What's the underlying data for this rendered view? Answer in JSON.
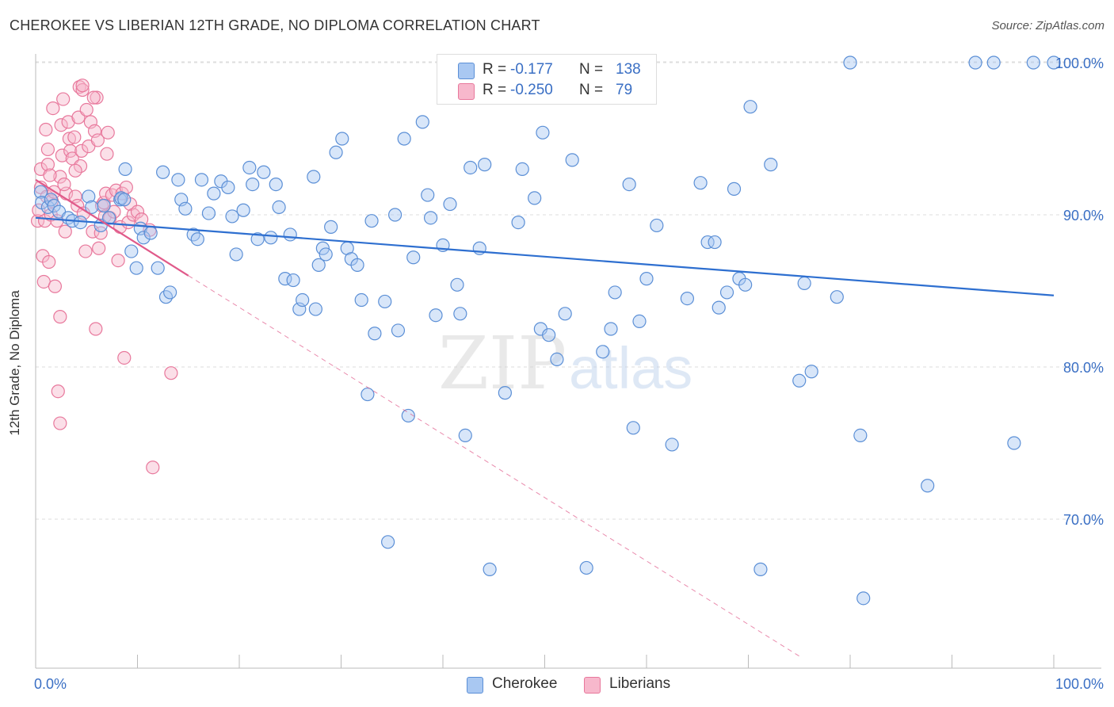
{
  "header": {
    "title": "CHEROKEE VS LIBERIAN 12TH GRADE, NO DIPLOMA CORRELATION CHART",
    "source": "Source: ZipAtlas.com"
  },
  "watermark": {
    "zip": "ZIP",
    "atlas": "atlas"
  },
  "legend_top": {
    "rows": [
      {
        "r_label": "R =",
        "r_value": "-0.177",
        "n_label": "N =",
        "n_value": "138",
        "color": "#a9c8f2"
      },
      {
        "r_label": "R =",
        "r_value": "-0.250",
        "n_label": "N =",
        "n_value": "79",
        "color": "#f7b8cc"
      }
    ]
  },
  "legend_bottom": [
    {
      "label": "Cherokee",
      "color": "#a9c8f2"
    },
    {
      "label": "Liberians",
      "color": "#f7b8cc"
    }
  ],
  "colors": {
    "cherokee_fill": "#a9c8f2",
    "cherokee_stroke": "#5b8fd6",
    "cherokee_line": "#2e6fd0",
    "liberian_fill": "#f7b8cc",
    "liberian_stroke": "#e8789c",
    "liberian_line": "#e05a8a",
    "tick_label": "#3a6fc4",
    "grid": "#dddddd"
  },
  "chart_data": {
    "type": "scatter",
    "title": "CHEROKEE VS LIBERIAN 12TH GRADE, NO DIPLOMA CORRELATION CHART",
    "xlabel": "",
    "ylabel": "12th Grade, No Diploma",
    "xlim": [
      0,
      100
    ],
    "ylim": [
      60,
      102
    ],
    "x_tick_labels": [
      "0.0%",
      "100.0%"
    ],
    "y_ticks": [
      70,
      80,
      90,
      100
    ],
    "y_tick_labels": [
      "70.0%",
      "80.0%",
      "90.0%",
      "100.0%"
    ],
    "grid": true,
    "legend_position": "top-center",
    "series": [
      {
        "name": "Cherokee",
        "R": -0.177,
        "N": 138,
        "trend": {
          "x": [
            0,
            100
          ],
          "y": [
            89.8,
            84.7
          ]
        },
        "points": [
          [
            0.5,
            91.5
          ],
          [
            0.6,
            90.8
          ],
          [
            1.2,
            90.5
          ],
          [
            1.5,
            91
          ],
          [
            1.8,
            90.6
          ],
          [
            2.3,
            90.2
          ],
          [
            3.2,
            89.8
          ],
          [
            3.6,
            89.6
          ],
          [
            4.4,
            89.5
          ],
          [
            5.2,
            91.2
          ],
          [
            5.5,
            90.5
          ],
          [
            6.7,
            90.6
          ],
          [
            6.4,
            89.3
          ],
          [
            7.2,
            89.8
          ],
          [
            8.3,
            91
          ],
          [
            8.4,
            91.1
          ],
          [
            8.7,
            91
          ],
          [
            8.8,
            93
          ],
          [
            9.4,
            87.6
          ],
          [
            9.9,
            86.5
          ],
          [
            10.3,
            89.1
          ],
          [
            10.6,
            88.5
          ],
          [
            11.3,
            88.8
          ],
          [
            12.0,
            86.5
          ],
          [
            12.5,
            92.8
          ],
          [
            12.8,
            84.6
          ],
          [
            13.2,
            84.9
          ],
          [
            14.0,
            92.3
          ],
          [
            14.3,
            91.0
          ],
          [
            14.7,
            90.4
          ],
          [
            15.5,
            88.7
          ],
          [
            15.9,
            88.4
          ],
          [
            16.3,
            92.3
          ],
          [
            17.0,
            90.1
          ],
          [
            17.5,
            91.4
          ],
          [
            18.2,
            92.2
          ],
          [
            18.9,
            91.8
          ],
          [
            19.3,
            89.9
          ],
          [
            19.7,
            87.4
          ],
          [
            20.4,
            90.3
          ],
          [
            21.0,
            93.1
          ],
          [
            21.3,
            92.0
          ],
          [
            21.8,
            88.4
          ],
          [
            22.4,
            92.8
          ],
          [
            23.1,
            88.5
          ],
          [
            23.6,
            92.0
          ],
          [
            23.9,
            90.5
          ],
          [
            24.5,
            85.8
          ],
          [
            25.0,
            88.7
          ],
          [
            25.3,
            85.7
          ],
          [
            25.9,
            83.8
          ],
          [
            26.2,
            84.4
          ],
          [
            27.3,
            92.5
          ],
          [
            27.5,
            83.8
          ],
          [
            27.8,
            86.7
          ],
          [
            28.2,
            87.8
          ],
          [
            28.5,
            87.4
          ],
          [
            29.0,
            89.2
          ],
          [
            29.5,
            94.1
          ],
          [
            30.1,
            95.0
          ],
          [
            30.6,
            87.8
          ],
          [
            31.0,
            87.1
          ],
          [
            31.6,
            86.7
          ],
          [
            32.0,
            84.4
          ],
          [
            32.6,
            78.2
          ],
          [
            33.0,
            89.6
          ],
          [
            33.3,
            82.2
          ],
          [
            34.3,
            84.3
          ],
          [
            34.6,
            68.5
          ],
          [
            35.3,
            90.0
          ],
          [
            35.6,
            82.4
          ],
          [
            36.2,
            95.0
          ],
          [
            36.6,
            76.8
          ],
          [
            37.1,
            87.2
          ],
          [
            38.0,
            96.1
          ],
          [
            38.5,
            91.3
          ],
          [
            38.8,
            89.8
          ],
          [
            39.3,
            83.4
          ],
          [
            40.0,
            88.0
          ],
          [
            40.7,
            90.7
          ],
          [
            41.4,
            85.4
          ],
          [
            41.7,
            83.5
          ],
          [
            42.2,
            75.5
          ],
          [
            42.7,
            93.1
          ],
          [
            43.6,
            87.8
          ],
          [
            44.1,
            93.3
          ],
          [
            44.6,
            66.7
          ],
          [
            46.1,
            78.3
          ],
          [
            47.4,
            89.5
          ],
          [
            47.8,
            93.0
          ],
          [
            48.0,
            100
          ],
          [
            49.0,
            91.1
          ],
          [
            49.6,
            82.5
          ],
          [
            49.8,
            95.4
          ],
          [
            50.4,
            82.1
          ],
          [
            51.2,
            80.5
          ],
          [
            52.0,
            83.5
          ],
          [
            52.7,
            93.6
          ],
          [
            53.1,
            100
          ],
          [
            54.1,
            66.8
          ],
          [
            55.7,
            81.0
          ],
          [
            56.5,
            82.5
          ],
          [
            56.9,
            84.9
          ],
          [
            58.3,
            92.0
          ],
          [
            58.7,
            76.0
          ],
          [
            59.3,
            83.0
          ],
          [
            60.0,
            85.8
          ],
          [
            61.0,
            89.3
          ],
          [
            62.5,
            74.9
          ],
          [
            64.0,
            84.5
          ],
          [
            65.3,
            92.1
          ],
          [
            66.0,
            88.2
          ],
          [
            66.7,
            88.2
          ],
          [
            67.1,
            83.9
          ],
          [
            67.9,
            84.9
          ],
          [
            68.6,
            91.7
          ],
          [
            69.1,
            85.8
          ],
          [
            69.7,
            85.4
          ],
          [
            70.2,
            97.1
          ],
          [
            71.2,
            66.7
          ],
          [
            72.2,
            93.3
          ],
          [
            75.0,
            79.1
          ],
          [
            75.5,
            85.5
          ],
          [
            76.2,
            79.7
          ],
          [
            78.7,
            84.6
          ],
          [
            80.0,
            100
          ],
          [
            81.0,
            75.5
          ],
          [
            81.3,
            64.8
          ],
          [
            87.6,
            72.2
          ],
          [
            92.3,
            100
          ],
          [
            94.1,
            100
          ],
          [
            96.1,
            75.0
          ],
          [
            98.0,
            100
          ],
          [
            100.0,
            100
          ]
        ]
      },
      {
        "name": "Liberians",
        "R": -0.25,
        "N": 79,
        "trend": {
          "x": [
            0,
            15
          ],
          "y": [
            92.3,
            86.0
          ]
        },
        "trend_dashed": {
          "x": [
            15,
            75
          ],
          "y": [
            86.0,
            61.0
          ]
        },
        "points": [
          [
            0.2,
            89.6
          ],
          [
            0.3,
            90.3
          ],
          [
            0.5,
            91.8
          ],
          [
            0.5,
            93.0
          ],
          [
            0.7,
            87.3
          ],
          [
            0.8,
            85.6
          ],
          [
            0.9,
            89.6
          ],
          [
            1.0,
            95.6
          ],
          [
            1.1,
            91.2
          ],
          [
            1.2,
            93.3
          ],
          [
            1.2,
            94.3
          ],
          [
            1.3,
            86.9
          ],
          [
            1.5,
            90.0
          ],
          [
            1.6,
            90.9
          ],
          [
            1.7,
            97.0
          ],
          [
            1.8,
            91.5
          ],
          [
            1.9,
            85.3
          ],
          [
            2.1,
            89.6
          ],
          [
            2.2,
            78.4
          ],
          [
            2.4,
            76.3
          ],
          [
            2.4,
            83.3
          ],
          [
            2.4,
            92.5
          ],
          [
            2.5,
            95.9
          ],
          [
            2.6,
            93.9
          ],
          [
            2.7,
            97.6
          ],
          [
            2.9,
            88.9
          ],
          [
            3.0,
            91.4
          ],
          [
            3.2,
            96.1
          ],
          [
            3.3,
            95.0
          ],
          [
            3.4,
            94.2
          ],
          [
            3.6,
            93.7
          ],
          [
            3.8,
            95.1
          ],
          [
            3.9,
            91.2
          ],
          [
            4.1,
            90.6
          ],
          [
            4.2,
            96.4
          ],
          [
            4.3,
            98.4
          ],
          [
            4.4,
            93.2
          ],
          [
            4.5,
            94.2
          ],
          [
            4.6,
            98.2
          ],
          [
            4.7,
            90.1
          ],
          [
            4.9,
            87.6
          ],
          [
            5.0,
            96.9
          ],
          [
            5.2,
            94.5
          ],
          [
            5.4,
            96.1
          ],
          [
            5.6,
            88.9
          ],
          [
            5.8,
            95.5
          ],
          [
            5.9,
            82.5
          ],
          [
            6.1,
            94.9
          ],
          [
            6.2,
            87.8
          ],
          [
            6.4,
            88.8
          ],
          [
            6.5,
            90.6
          ],
          [
            6.7,
            90.8
          ],
          [
            6.8,
            89.9
          ],
          [
            6.9,
            91.4
          ],
          [
            7.0,
            94.0
          ],
          [
            7.1,
            95.4
          ],
          [
            7.3,
            89.8
          ],
          [
            7.5,
            91.3
          ],
          [
            7.7,
            90.2
          ],
          [
            7.9,
            91.6
          ],
          [
            8.1,
            87.0
          ],
          [
            8.3,
            89.2
          ],
          [
            8.5,
            91.4
          ],
          [
            8.7,
            80.6
          ],
          [
            8.9,
            91.8
          ],
          [
            9.1,
            89.5
          ],
          [
            9.3,
            90.7
          ],
          [
            9.6,
            90.0
          ],
          [
            10.0,
            90.2
          ],
          [
            10.4,
            89.7
          ],
          [
            11.2,
            89.0
          ],
          [
            11.5,
            73.4
          ],
          [
            13.3,
            79.6
          ],
          [
            6.0,
            97.7
          ],
          [
            5.7,
            97.7
          ],
          [
            4.6,
            98.5
          ],
          [
            3.9,
            92.9
          ],
          [
            2.8,
            92.0
          ],
          [
            1.4,
            92.6
          ]
        ]
      }
    ]
  }
}
